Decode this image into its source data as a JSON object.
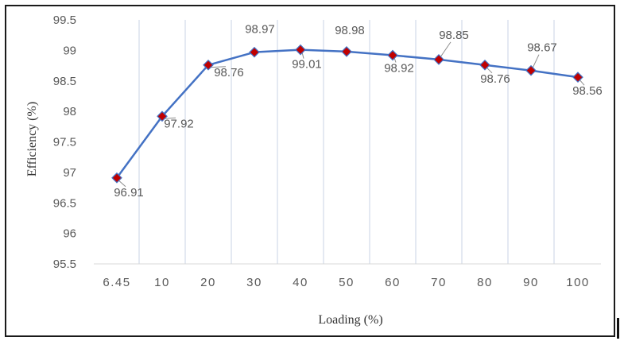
{
  "chart_data": {
    "type": "line",
    "title": "",
    "xlabel": "Loading (%)",
    "ylabel": "Efficiency (%)",
    "categories": [
      "6.45",
      "10",
      "20",
      "30",
      "40",
      "50",
      "60",
      "70",
      "80",
      "90",
      "100"
    ],
    "series": [
      {
        "values": [
          96.91,
          97.92,
          98.76,
          98.97,
          99.01,
          98.98,
          98.92,
          98.85,
          98.76,
          98.67,
          98.56
        ],
        "labels": [
          "96.91",
          "97.92",
          "98.76",
          "98.97",
          "99.01",
          "98.98",
          "98.92",
          "98.85",
          "98.76",
          "98.67",
          "98.56"
        ]
      }
    ],
    "yticks": [
      "95.5",
      "96",
      "96.5",
      "97",
      "97.5",
      "98",
      "98.5",
      "99",
      "99.5"
    ],
    "ylim": [
      95.5,
      99.5
    ],
    "grid": "vertical",
    "line_color": "#4472c4",
    "marker_color": "#c00000",
    "legend": "none"
  }
}
